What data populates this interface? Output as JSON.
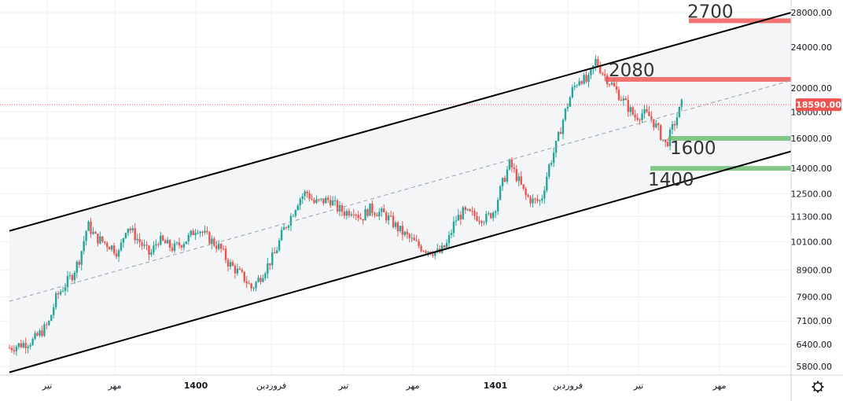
{
  "chart_data": {
    "type": "candlestick",
    "y_scale": "log",
    "ylim": [
      5500,
      29000
    ],
    "grid": true,
    "y_ticks": [
      "5800.00",
      "6400.00",
      "7100.00",
      "7900.00",
      "8900.00",
      "10100.00",
      "11300.00",
      "12500.00",
      "14000.00",
      "16000.00",
      "18000.00",
      "20000.00",
      "24000.00",
      "28000.00"
    ],
    "x_ticks": [
      {
        "label": "تیر",
        "bold": false
      },
      {
        "label": "مهر",
        "bold": false
      },
      {
        "label": "1400",
        "bold": true
      },
      {
        "label": "فروردین",
        "bold": false
      },
      {
        "label": "تیر",
        "bold": false
      },
      {
        "label": "مهر",
        "bold": false
      },
      {
        "label": "1401",
        "bold": true
      },
      {
        "label": "فروردین",
        "bold": false
      },
      {
        "label": "تیر",
        "bold": false
      },
      {
        "label": "مهر",
        "bold": false
      }
    ],
    "last_price": {
      "label": "18590.00",
      "value": 18590,
      "color": "#ef5350"
    },
    "levels": [
      {
        "label": "2700",
        "value": 27000,
        "color": "#ef5350"
      },
      {
        "label": "2080",
        "value": 20800,
        "color": "#ef5350"
      },
      {
        "label": "1600",
        "value": 16000,
        "color": "#66bb6a"
      },
      {
        "label": "1400",
        "value": 14000,
        "color": "#66bb6a"
      }
    ],
    "channel": {
      "upper": [
        [
          0,
          10600
        ],
        [
          1,
          28000
        ]
      ],
      "lower": [
        [
          0,
          5650
        ],
        [
          1,
          15100
        ]
      ],
      "mid": [
        [
          0,
          7750
        ],
        [
          1,
          20700
        ]
      ]
    },
    "price_path": [
      [
        0.0,
        6300
      ],
      [
        0.03,
        6500
      ],
      [
        0.05,
        7000
      ],
      [
        0.06,
        7900
      ],
      [
        0.08,
        8700
      ],
      [
        0.09,
        9400
      ],
      [
        0.1,
        10900
      ],
      [
        0.11,
        10300
      ],
      [
        0.13,
        9900
      ],
      [
        0.14,
        9600
      ],
      [
        0.15,
        10900
      ],
      [
        0.16,
        10400
      ],
      [
        0.18,
        9500
      ],
      [
        0.19,
        10200
      ],
      [
        0.2,
        10000
      ],
      [
        0.21,
        9800
      ],
      [
        0.23,
        10300
      ],
      [
        0.24,
        10800
      ],
      [
        0.25,
        10400
      ],
      [
        0.27,
        9800
      ],
      [
        0.28,
        9200
      ],
      [
        0.3,
        8600
      ],
      [
        0.31,
        8200
      ],
      [
        0.32,
        8600
      ],
      [
        0.34,
        9600
      ],
      [
        0.35,
        10600
      ],
      [
        0.36,
        11300
      ],
      [
        0.37,
        12200
      ],
      [
        0.38,
        12600
      ],
      [
        0.39,
        12000
      ],
      [
        0.41,
        12200
      ],
      [
        0.42,
        11700
      ],
      [
        0.43,
        11500
      ],
      [
        0.44,
        11700
      ],
      [
        0.45,
        11200
      ],
      [
        0.46,
        11700
      ],
      [
        0.48,
        11400
      ],
      [
        0.49,
        11000
      ],
      [
        0.5,
        10600
      ],
      [
        0.51,
        10300
      ],
      [
        0.52,
        10000
      ],
      [
        0.53,
        9800
      ],
      [
        0.55,
        9600
      ],
      [
        0.56,
        10000
      ],
      [
        0.57,
        11100
      ],
      [
        0.58,
        11500
      ],
      [
        0.59,
        11400
      ],
      [
        0.61,
        11200
      ],
      [
        0.62,
        11600
      ],
      [
        0.63,
        13000
      ],
      [
        0.64,
        14300
      ],
      [
        0.65,
        13400
      ],
      [
        0.66,
        12400
      ],
      [
        0.67,
        12100
      ],
      [
        0.68,
        12100
      ],
      [
        0.69,
        14100
      ],
      [
        0.7,
        15600
      ],
      [
        0.71,
        17800
      ],
      [
        0.72,
        19800
      ],
      [
        0.73,
        21000
      ],
      [
        0.74,
        20500
      ],
      [
        0.75,
        22600
      ],
      [
        0.76,
        21300
      ],
      [
        0.77,
        20400
      ],
      [
        0.78,
        19400
      ],
      [
        0.79,
        18500
      ],
      [
        0.8,
        17600
      ],
      [
        0.81,
        17900
      ],
      [
        0.82,
        17600
      ],
      [
        0.83,
        16600
      ],
      [
        0.84,
        15500
      ],
      [
        0.85,
        17000
      ],
      [
        0.86,
        18590
      ]
    ]
  }
}
